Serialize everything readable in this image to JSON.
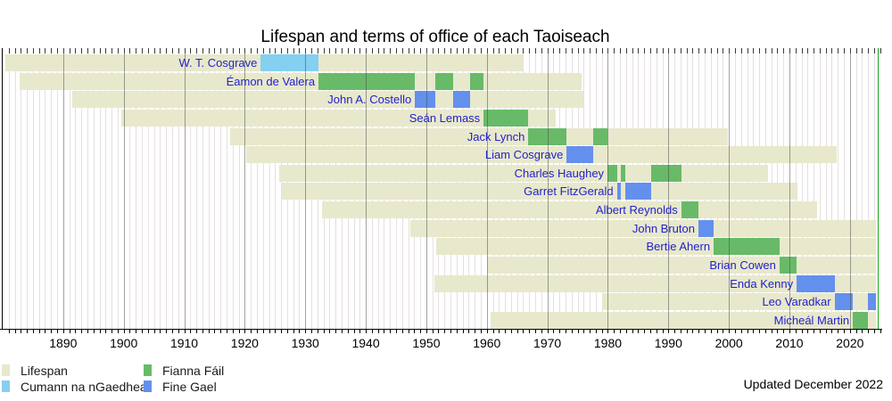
{
  "title": "Lifespan and terms of office of each Taoiseach",
  "updated": "Updated December 2022",
  "legend": {
    "items": [
      {
        "label": "Lifespan",
        "party": "lifespan"
      },
      {
        "label": "Cumann na nGaedheal",
        "party": "cng"
      },
      {
        "label": "Fianna Fáil",
        "party": "ff"
      },
      {
        "label": "Fine Gael",
        "party": "fg"
      }
    ]
  },
  "chart_data": {
    "type": "timeline",
    "title": "Lifespan and terms of office of each Taoiseach",
    "x_axis": {
      "start": 1880,
      "end": 2024.6,
      "present": 2024.3,
      "now_line": 2024.6,
      "tick_interval": 1,
      "year_labels": [
        "1890",
        "1900",
        "1910",
        "1920",
        "1930",
        "1940",
        "1950",
        "1960",
        "1970",
        "1980",
        "1990",
        "2000",
        "2010",
        "2020"
      ]
    },
    "colors": {
      "lifespan": "#e8e8cc",
      "cng": "#85cff0",
      "ff": "#68ba68",
      "fg": "#6490ed",
      "link": "#2222cc",
      "now_line": "#1fa51f"
    },
    "rows": [
      {
        "name": "W. T. Cosgrave",
        "born": 1880.43,
        "died": 1965.88,
        "terms": [
          {
            "party": "cng",
            "start": 1922.65,
            "end": 1932.19
          }
        ]
      },
      {
        "name": "Éamon de Valera",
        "born": 1882.79,
        "died": 1975.66,
        "terms": [
          {
            "party": "ff",
            "start": 1932.19,
            "end": 1948.13
          },
          {
            "party": "ff",
            "start": 1951.45,
            "end": 1954.42
          },
          {
            "party": "ff",
            "start": 1957.22,
            "end": 1959.47
          }
        ]
      },
      {
        "name": "John A. Costello",
        "born": 1891.47,
        "died": 1976.01,
        "terms": [
          {
            "party": "fg",
            "start": 1948.13,
            "end": 1951.45
          },
          {
            "party": "fg",
            "start": 1954.42,
            "end": 1957.22
          }
        ]
      },
      {
        "name": "Seán Lemass",
        "born": 1899.54,
        "died": 1971.36,
        "terms": [
          {
            "party": "ff",
            "start": 1959.47,
            "end": 1966.86
          }
        ]
      },
      {
        "name": "Jack Lynch",
        "born": 1917.62,
        "died": 1999.8,
        "terms": [
          {
            "party": "ff",
            "start": 1966.86,
            "end": 1973.2
          },
          {
            "party": "ff",
            "start": 1977.51,
            "end": 1979.94
          }
        ]
      },
      {
        "name": "Liam Cosgrave",
        "born": 1920.28,
        "died": 2017.76,
        "terms": [
          {
            "party": "fg",
            "start": 1973.2,
            "end": 1977.51
          }
        ]
      },
      {
        "name": "Charles Haughey",
        "born": 1925.71,
        "died": 2006.45,
        "terms": [
          {
            "party": "ff",
            "start": 1979.94,
            "end": 1981.49
          },
          {
            "party": "ff",
            "start": 1982.19,
            "end": 1982.95
          },
          {
            "party": "ff",
            "start": 1987.19,
            "end": 1992.12
          }
        ]
      },
      {
        "name": "Garret FitzGerald",
        "born": 1926.11,
        "died": 2011.38,
        "terms": [
          {
            "party": "fg",
            "start": 1981.49,
            "end": 1982.19
          },
          {
            "party": "fg",
            "start": 1982.95,
            "end": 1987.19
          }
        ]
      },
      {
        "name": "Albert Reynolds",
        "born": 1932.84,
        "died": 2014.64,
        "terms": [
          {
            "party": "ff",
            "start": 1992.12,
            "end": 1994.96
          }
        ]
      },
      {
        "name": "John Bruton",
        "born": 1947.38,
        "died": null,
        "terms": [
          {
            "party": "fg",
            "start": 1994.96,
            "end": 1997.48
          }
        ]
      },
      {
        "name": "Bertie Ahern",
        "born": 1951.7,
        "died": null,
        "terms": [
          {
            "party": "ff",
            "start": 1997.48,
            "end": 2008.35
          }
        ]
      },
      {
        "name": "Brian Cowen",
        "born": 1960.03,
        "died": null,
        "terms": [
          {
            "party": "ff",
            "start": 2008.35,
            "end": 2011.19
          }
        ]
      },
      {
        "name": "Enda Kenny",
        "born": 1951.31,
        "died": null,
        "terms": [
          {
            "party": "fg",
            "start": 2011.19,
            "end": 2017.45
          }
        ]
      },
      {
        "name": "Leo Varadkar",
        "born": 1979.05,
        "died": null,
        "terms": [
          {
            "party": "fg",
            "start": 2017.45,
            "end": 2020.49
          },
          {
            "party": "fg",
            "start": 2022.96,
            "end": null
          }
        ]
      },
      {
        "name": "Micheál Martin",
        "born": 1960.58,
        "died": null,
        "terms": [
          {
            "party": "ff",
            "start": 2020.49,
            "end": 2022.96
          }
        ]
      }
    ]
  }
}
